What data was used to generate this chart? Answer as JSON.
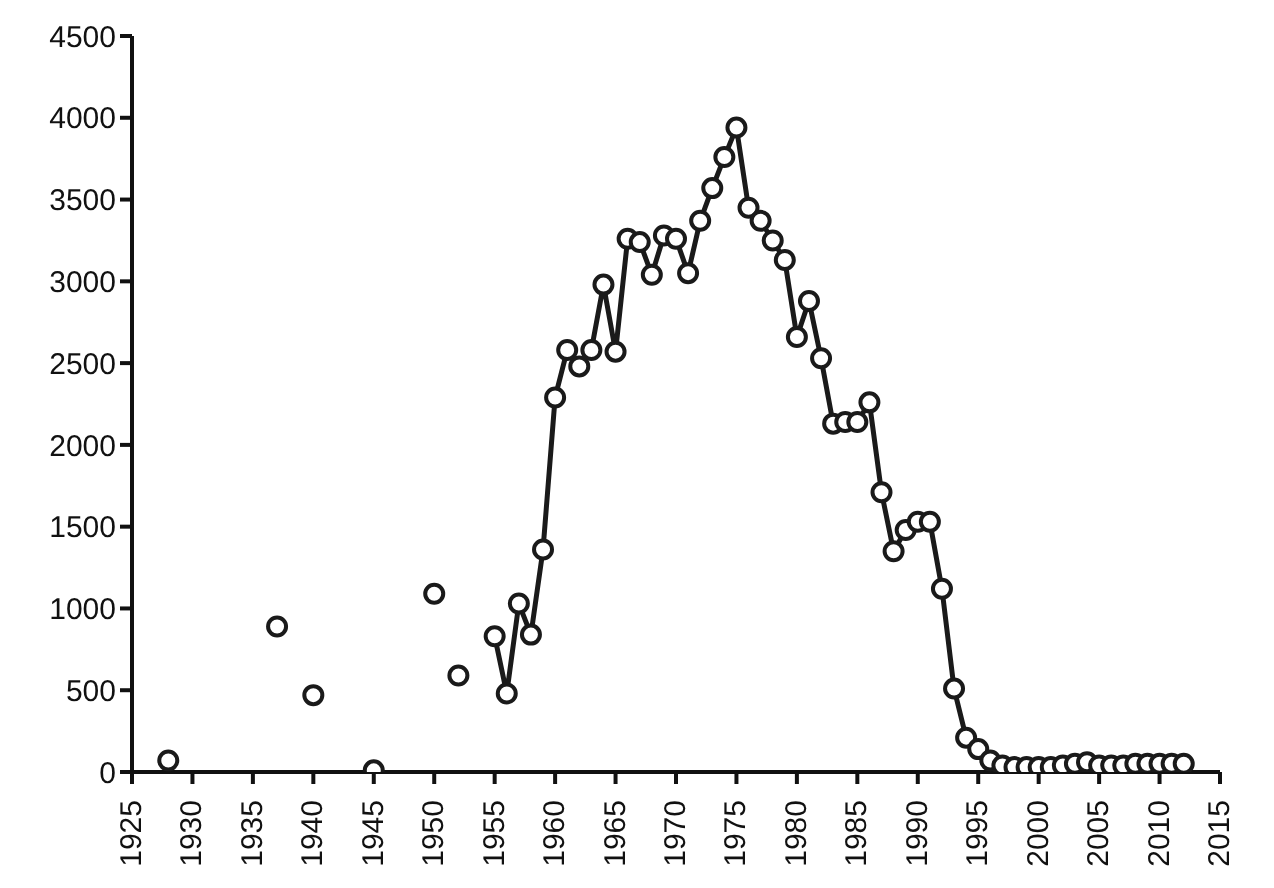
{
  "chart_data": {
    "type": "line",
    "xlim": [
      1925,
      2015
    ],
    "xticks": [
      1925,
      1930,
      1935,
      1940,
      1945,
      1950,
      1955,
      1960,
      1965,
      1970,
      1975,
      1980,
      1985,
      1990,
      1995,
      2000,
      2005,
      2010,
      2015
    ],
    "ylim": [
      0,
      4500
    ],
    "yticks": [
      0,
      500,
      1000,
      1500,
      2000,
      2500,
      3000,
      3500,
      4000,
      4500
    ],
    "grid": false,
    "marker": "circle",
    "line_style": "solid",
    "series": [
      {
        "type": "scatter",
        "color": "#1a1a1a",
        "x": [
          1928,
          1937,
          1940,
          1945,
          1950,
          1952
        ],
        "values": [
          70,
          890,
          470,
          10,
          1090,
          590
        ]
      },
      {
        "color": "#1a1a1a",
        "x": [
          1955,
          1956,
          1957,
          1958,
          1959,
          1960,
          1961,
          1962,
          1963,
          1964,
          1965,
          1966,
          1967,
          1968,
          1969,
          1970,
          1971,
          1972,
          1973,
          1974,
          1975,
          1976,
          1977,
          1978,
          1979,
          1980,
          1981,
          1982,
          1983,
          1984,
          1985,
          1986,
          1987,
          1988,
          1989,
          1990,
          1991,
          1992,
          1993,
          1994,
          1995,
          1996,
          1997,
          1998,
          1999,
          2000,
          2001,
          2002,
          2003,
          2004,
          2005,
          2006,
          2007,
          2008,
          2009,
          2010,
          2011,
          2012
        ],
        "values": [
          830,
          480,
          1030,
          840,
          1360,
          2290,
          2580,
          2480,
          2580,
          2980,
          2570,
          3260,
          3240,
          3040,
          3280,
          3260,
          3050,
          3370,
          3570,
          3760,
          3940,
          3450,
          3370,
          3250,
          3130,
          2660,
          2880,
          2530,
          2130,
          2140,
          2140,
          2260,
          1710,
          1350,
          1480,
          1530,
          1530,
          1120,
          510,
          210,
          140,
          70,
          40,
          30,
          30,
          30,
          30,
          40,
          50,
          60,
          40,
          40,
          40,
          50,
          50,
          50,
          50,
          50
        ]
      }
    ]
  }
}
